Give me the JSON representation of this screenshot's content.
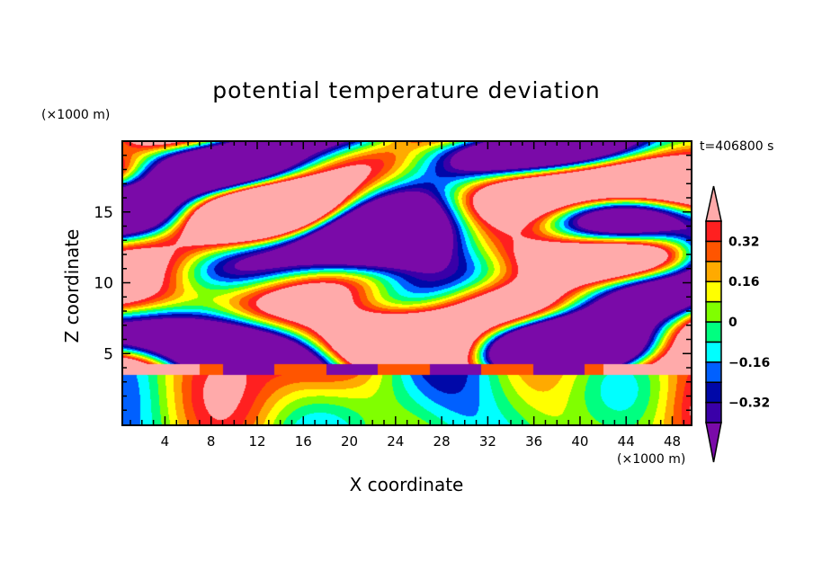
{
  "chart_data": {
    "type": "heatmap",
    "title": "potential temperature deviation",
    "xlabel": "X coordinate",
    "ylabel": "Z coordinate",
    "x_unit": "(×1000 m)",
    "y_unit": "(×1000 m)",
    "time_label": "t=406800 s",
    "xlim": [
      0.3,
      49.6
    ],
    "ylim": [
      0,
      20
    ],
    "xticks": [
      "4",
      "8",
      "12",
      "16",
      "20",
      "24",
      "28",
      "32",
      "36",
      "40",
      "44",
      "48"
    ],
    "yticks": [
      "5",
      "10",
      "15"
    ],
    "colorbar": {
      "levels": [
        -0.4,
        -0.32,
        -0.24,
        -0.16,
        -0.08,
        0,
        0.08,
        0.16,
        0.24,
        0.32,
        0.4
      ],
      "labels": [
        "0.32",
        "0.16",
        "0",
        "−0.16",
        "−0.32"
      ],
      "label_values": [
        0.32,
        0.16,
        0,
        -0.16,
        -0.32
      ],
      "colors": [
        "#7a0aa8",
        "#3a00a8",
        "#0008a8",
        "#0060ff",
        "#00ffff",
        "#00ff80",
        "#80ff00",
        "#ffff00",
        "#ffaa00",
        "#ff5500",
        "#ff2020",
        "#ffaaaa"
      ],
      "extend": "both"
    }
  }
}
